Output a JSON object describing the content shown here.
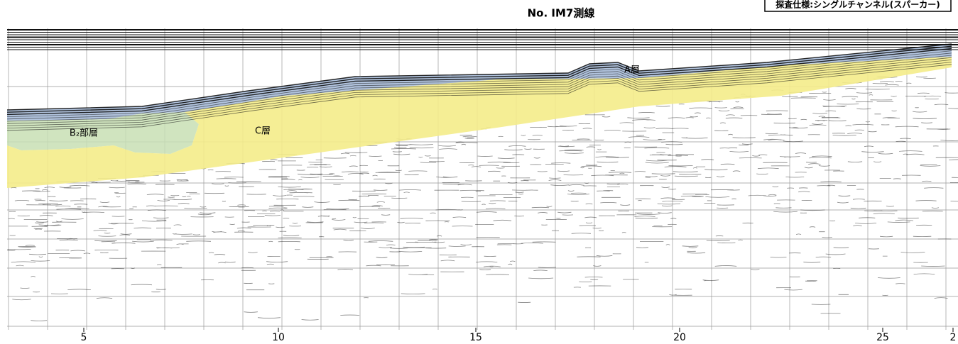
{
  "header": {
    "title": "No. IM7測線",
    "spec": "探査仕様:シングルチャンネル(スパーカー)"
  },
  "layers": [
    {
      "label": "A層"
    },
    {
      "label": "B₂部層"
    },
    {
      "label": "C層"
    }
  ],
  "axis": {
    "labels": [
      "5",
      "10",
      "15",
      "20",
      "25",
      "2"
    ]
  }
}
